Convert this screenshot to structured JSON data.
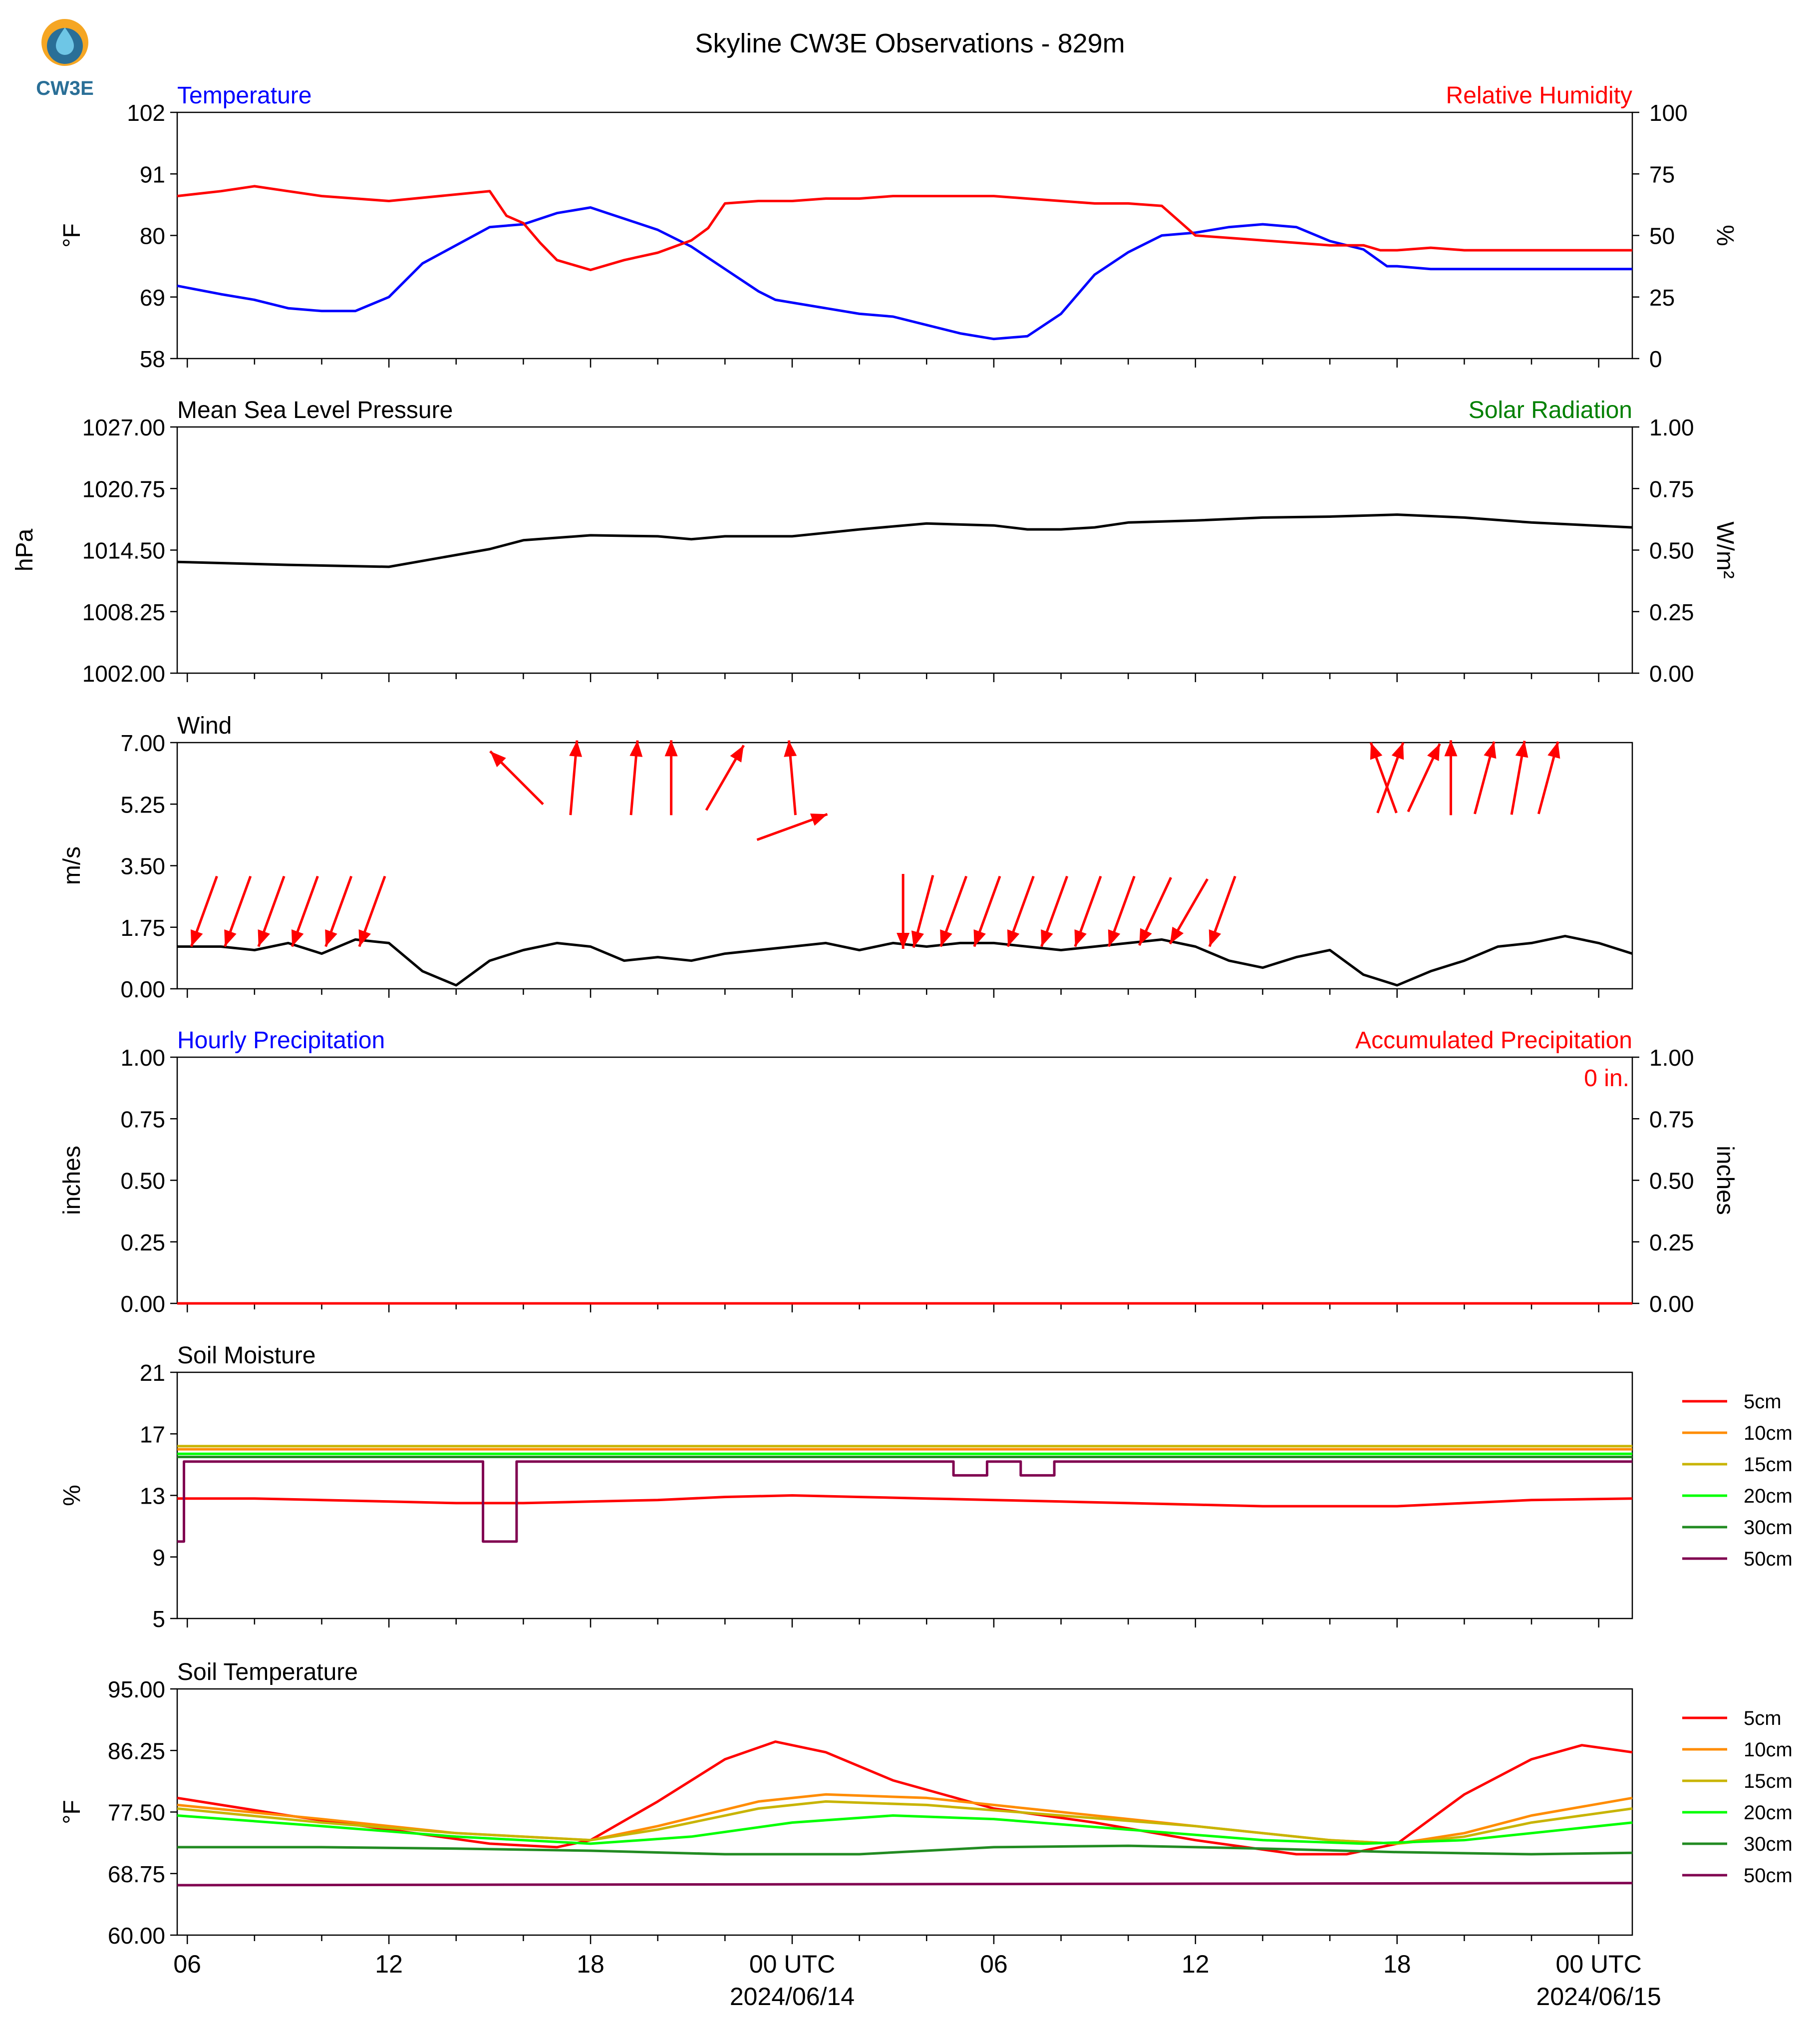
{
  "figure": {
    "title": "Skyline CW3E Observations - 829m",
    "logo_text": "CW3E"
  },
  "time_axis": {
    "tick_labels": [
      "06",
      "12",
      "18",
      "00 UTC",
      "06",
      "12",
      "18",
      "00 UTC"
    ],
    "tick_hours": [
      0,
      6,
      12,
      18,
      24,
      30,
      36,
      42
    ],
    "date_labels": [
      "2024/06/14",
      "2024/06/15"
    ],
    "date_hours": [
      18,
      42
    ],
    "start_hour": -0.3,
    "end_hour": 43.0
  },
  "colors": {
    "temperature": "#0000ff",
    "humidity": "#ff0000",
    "pressure": "#000000",
    "solar": "#008000",
    "wind_barb": "#ff0000",
    "hourly_precip": "#0000ff",
    "accum_precip": "#ff0000",
    "depth_5cm": "#ff0000",
    "depth_10cm": "#ff8c00",
    "depth_15cm": "#c8b400",
    "depth_20cm": "#00ff00",
    "depth_30cm": "#228b22",
    "depth_50cm": "#800050"
  },
  "chart_data": [
    {
      "type": "line",
      "title_left": "Temperature",
      "title_right": "Relative Humidity",
      "ylabel": "°F",
      "ylabel_right": "%",
      "ylim": [
        58,
        102
      ],
      "yticks": [
        "102",
        "91",
        "80",
        "69",
        "58"
      ],
      "ylim_right": [
        0,
        100
      ],
      "yticks_right": [
        "100",
        "75",
        "50",
        "25",
        "0"
      ],
      "series": [
        {
          "name": "Temperature",
          "axis": "left",
          "x": [
            -0.3,
            1,
            2,
            3,
            4,
            5,
            6,
            7,
            9,
            10,
            11,
            12,
            12.5,
            13,
            14,
            15,
            16,
            17,
            17.5,
            18,
            19,
            20,
            21,
            22,
            23,
            24,
            25,
            26,
            27,
            28,
            29,
            30,
            31,
            32,
            33,
            34,
            35,
            35.7,
            36,
            37,
            38,
            39,
            40,
            41,
            42,
            43
          ],
          "y": [
            71,
            69.5,
            68.5,
            67,
            66.5,
            66.5,
            69,
            75,
            81.5,
            82,
            84,
            85,
            84,
            83,
            81,
            78,
            74,
            70,
            68.5,
            68,
            67,
            66,
            65.5,
            64,
            62.5,
            61.5,
            62,
            66,
            73,
            77,
            80,
            80.5,
            81.5,
            82,
            81.5,
            79,
            77.5,
            74.5,
            74.5,
            74,
            74,
            74,
            74,
            74,
            74,
            74
          ]
        },
        {
          "name": "Relative Humidity",
          "axis": "right",
          "x": [
            -0.3,
            1,
            2,
            3,
            4,
            6,
            9,
            9.5,
            10,
            10.5,
            11,
            11.5,
            12,
            13,
            14,
            15,
            15.5,
            16,
            17,
            18,
            19,
            20,
            21,
            22,
            23,
            24,
            25,
            26,
            27,
            28,
            29,
            30,
            31,
            32,
            33,
            34,
            35,
            35.5,
            36,
            37,
            38,
            39,
            40,
            41,
            42,
            43
          ],
          "y": [
            66,
            68,
            70,
            68,
            66,
            64,
            68,
            58,
            55,
            47,
            40,
            38,
            36,
            40,
            43,
            48,
            53,
            63,
            64,
            64,
            65,
            65,
            66,
            66,
            66,
            66,
            65,
            64,
            63,
            63,
            62,
            50,
            49,
            48,
            47,
            46,
            46,
            44,
            44,
            45,
            44,
            44,
            44,
            44,
            44,
            44
          ]
        }
      ]
    },
    {
      "type": "line",
      "title_left": "Mean Sea Level Pressure",
      "title_right": "Solar Radiation",
      "ylabel": "hPa",
      "ylabel_right": "W/m²",
      "ylim": [
        1002,
        1027
      ],
      "yticks": [
        "1027.00",
        "1020.75",
        "1014.50",
        "1008.25",
        "1002.00"
      ],
      "ylim_right": [
        0,
        1
      ],
      "yticks_right": [
        "1.00",
        "0.75",
        "0.50",
        "0.25",
        "0.00"
      ],
      "series": [
        {
          "name": "Mean Sea Level Pressure",
          "axis": "left",
          "x": [
            -0.3,
            3,
            6,
            9,
            10,
            12,
            14,
            15,
            16,
            18,
            20,
            22,
            24,
            25,
            26,
            27,
            28,
            30,
            32,
            34,
            36,
            38,
            40,
            43
          ],
          "y": [
            1013.3,
            1013.0,
            1012.8,
            1014.6,
            1015.5,
            1016.0,
            1015.9,
            1015.6,
            1015.9,
            1015.9,
            1016.6,
            1017.2,
            1017.0,
            1016.6,
            1016.6,
            1016.8,
            1017.3,
            1017.5,
            1017.8,
            1017.9,
            1018.1,
            1017.8,
            1017.3,
            1016.8
          ]
        }
      ]
    },
    {
      "type": "line",
      "title_left": "Wind",
      "ylabel": "m/s",
      "ylim": [
        0,
        7
      ],
      "yticks": [
        "7.00",
        "5.25",
        "3.50",
        "1.75",
        "0.00"
      ],
      "series": [
        {
          "name": "Wind speed",
          "x": [
            -0.3,
            1,
            2,
            3,
            4,
            5,
            6,
            7,
            8,
            9,
            10,
            11,
            12,
            13,
            14,
            15,
            16,
            17,
            18,
            19,
            20,
            21,
            22,
            23,
            24,
            25,
            26,
            27,
            28,
            29,
            30,
            31,
            32,
            33,
            34,
            35,
            36,
            37,
            38,
            39,
            40,
            41,
            42,
            43
          ],
          "y": [
            1.2,
            1.2,
            1.1,
            1.3,
            1.0,
            1.4,
            1.3,
            0.5,
            0.1,
            0.8,
            1.1,
            1.3,
            1.2,
            0.8,
            0.9,
            0.8,
            1.0,
            1.1,
            1.2,
            1.3,
            1.1,
            1.3,
            1.2,
            1.3,
            1.3,
            1.2,
            1.1,
            1.2,
            1.3,
            1.4,
            1.2,
            0.8,
            0.6,
            0.9,
            1.1,
            0.4,
            0.1,
            0.5,
            0.8,
            1.2,
            1.3,
            1.5,
            1.3,
            1.0
          ]
        }
      ],
      "wind_arrows": [
        {
          "hour": 0.5,
          "speed": 2.2,
          "dir_deg": 20
        },
        {
          "hour": 1.5,
          "speed": 2.2,
          "dir_deg": 20
        },
        {
          "hour": 2.5,
          "speed": 2.2,
          "dir_deg": 20
        },
        {
          "hour": 3.5,
          "speed": 2.2,
          "dir_deg": 20
        },
        {
          "hour": 4.5,
          "speed": 2.2,
          "dir_deg": 20
        },
        {
          "hour": 5.5,
          "speed": 2.2,
          "dir_deg": 20
        },
        {
          "hour": 9.8,
          "speed": 6.0,
          "dir_deg": 135
        },
        {
          "hour": 11.5,
          "speed": 6.0,
          "dir_deg": 185
        },
        {
          "hour": 13.3,
          "speed": 6.0,
          "dir_deg": 185
        },
        {
          "hour": 14.4,
          "speed": 6.0,
          "dir_deg": 180
        },
        {
          "hour": 16.0,
          "speed": 6.0,
          "dir_deg": 210
        },
        {
          "hour": 18.0,
          "speed": 6.0,
          "dir_deg": 175
        },
        {
          "hour": 18.0,
          "speed": 4.6,
          "dir_deg": 250
        },
        {
          "hour": 21.3,
          "speed": 2.2,
          "dir_deg": 0
        },
        {
          "hour": 21.9,
          "speed": 2.2,
          "dir_deg": 15
        },
        {
          "hour": 22.8,
          "speed": 2.2,
          "dir_deg": 20
        },
        {
          "hour": 23.8,
          "speed": 2.2,
          "dir_deg": 20
        },
        {
          "hour": 24.8,
          "speed": 2.2,
          "dir_deg": 20
        },
        {
          "hour": 25.8,
          "speed": 2.2,
          "dir_deg": 20
        },
        {
          "hour": 26.8,
          "speed": 2.2,
          "dir_deg": 20
        },
        {
          "hour": 27.8,
          "speed": 2.2,
          "dir_deg": 20
        },
        {
          "hour": 28.8,
          "speed": 2.2,
          "dir_deg": 25
        },
        {
          "hour": 29.8,
          "speed": 2.2,
          "dir_deg": 30
        },
        {
          "hour": 30.8,
          "speed": 2.2,
          "dir_deg": 20
        },
        {
          "hour": 35.6,
          "speed": 6.0,
          "dir_deg": 160
        },
        {
          "hour": 35.8,
          "speed": 6.0,
          "dir_deg": 200
        },
        {
          "hour": 36.8,
          "speed": 6.0,
          "dir_deg": 205
        },
        {
          "hour": 37.6,
          "speed": 6.0,
          "dir_deg": 180
        },
        {
          "hour": 38.6,
          "speed": 6.0,
          "dir_deg": 195
        },
        {
          "hour": 39.6,
          "speed": 6.0,
          "dir_deg": 190
        },
        {
          "hour": 40.5,
          "speed": 6.0,
          "dir_deg": 195
        }
      ]
    },
    {
      "type": "line",
      "title_left": "Hourly Precipitation",
      "title_right": "Accumulated Precipitation",
      "annotation": "0 in.",
      "ylabel": "inches",
      "ylabel_right": "inches",
      "ylim": [
        0,
        1
      ],
      "yticks": [
        "1.00",
        "0.75",
        "0.50",
        "0.25",
        "0.00"
      ],
      "ylim_right": [
        0,
        1
      ],
      "yticks_right": [
        "1.00",
        "0.75",
        "0.50",
        "0.25",
        "0.00"
      ],
      "series": [
        {
          "name": "Hourly Precipitation",
          "x": [
            -0.3,
            43
          ],
          "y": [
            0,
            0
          ]
        },
        {
          "name": "Accumulated Precipitation",
          "axis": "right",
          "x": [
            -0.3,
            43
          ],
          "y": [
            0,
            0
          ]
        }
      ]
    },
    {
      "type": "line",
      "title_left": "Soil Moisture",
      "ylabel": "%",
      "ylim": [
        5,
        21
      ],
      "yticks": [
        "21",
        "17",
        "13",
        "9",
        "5"
      ],
      "legend": [
        "5cm",
        "10cm",
        "15cm",
        "20cm",
        "30cm",
        "50cm"
      ],
      "series": [
        {
          "name": "5cm",
          "x": [
            -0.3,
            2,
            4,
            6,
            8,
            10,
            12,
            14,
            16,
            18,
            20,
            22,
            24,
            26,
            28,
            30,
            32,
            34,
            36,
            38,
            40,
            43
          ],
          "y": [
            12.8,
            12.8,
            12.7,
            12.6,
            12.5,
            12.5,
            12.6,
            12.7,
            12.9,
            13.0,
            12.9,
            12.8,
            12.7,
            12.6,
            12.5,
            12.4,
            12.3,
            12.3,
            12.3,
            12.5,
            12.7,
            12.8
          ]
        },
        {
          "name": "10cm",
          "x": [
            -0.3,
            43
          ],
          "y": [
            16.0,
            16.0
          ]
        },
        {
          "name": "15cm",
          "x": [
            -0.3,
            43
          ],
          "y": [
            16.2,
            16.2
          ]
        },
        {
          "name": "20cm",
          "x": [
            -0.3,
            43
          ],
          "y": [
            15.7,
            15.7
          ]
        },
        {
          "name": "30cm",
          "x": [
            -0.3,
            43
          ],
          "y": [
            15.5,
            15.5
          ]
        },
        {
          "name": "50cm",
          "x": [
            -0.3,
            -0.1,
            -0.1,
            8.8,
            8.8,
            9.8,
            9.8,
            22.8,
            22.8,
            23.8,
            23.8,
            24.8,
            24.8,
            25.8,
            25.8,
            43
          ],
          "y": [
            10.0,
            10.0,
            15.2,
            15.2,
            10.0,
            10.0,
            15.2,
            15.2,
            14.3,
            14.3,
            15.2,
            15.2,
            14.3,
            14.3,
            15.2,
            15.2
          ]
        }
      ]
    },
    {
      "type": "line",
      "title_left": "Soil Temperature",
      "ylabel": "°F",
      "ylim": [
        60,
        95
      ],
      "yticks": [
        "95.00",
        "86.25",
        "77.50",
        "68.75",
        "60.00"
      ],
      "legend": [
        "5cm",
        "10cm",
        "15cm",
        "20cm",
        "30cm",
        "50cm"
      ],
      "series": [
        {
          "name": "5cm",
          "x": [
            -0.3,
            3,
            6,
            9,
            11,
            12,
            14,
            16,
            17.5,
            19,
            21,
            24,
            27,
            30,
            33,
            34.5,
            36,
            38,
            40,
            41.5,
            43
          ],
          "y": [
            79.5,
            77,
            75,
            73,
            72.5,
            73.5,
            79,
            85,
            87.5,
            86,
            82,
            78,
            76,
            73.5,
            71.5,
            71.5,
            73,
            80,
            85,
            87,
            86
          ]
        },
        {
          "name": "10cm",
          "x": [
            -0.3,
            4,
            8,
            12,
            14,
            17,
            19,
            22,
            26,
            30,
            34,
            36,
            38,
            40,
            43
          ],
          "y": [
            78.5,
            76.5,
            74.5,
            73.5,
            75.5,
            79,
            80,
            79.5,
            77.5,
            75.5,
            73.5,
            73,
            74.5,
            77,
            79.5
          ]
        },
        {
          "name": "15cm",
          "x": [
            -0.3,
            4,
            8,
            12,
            14,
            17,
            19,
            22,
            26,
            30,
            34,
            36,
            38,
            40,
            43
          ],
          "y": [
            78,
            76,
            74.5,
            73.5,
            75,
            78,
            79,
            78.5,
            77,
            75.5,
            73.5,
            73,
            74,
            76,
            78
          ]
        },
        {
          "name": "20cm",
          "x": [
            -0.3,
            4,
            8,
            12,
            15,
            18,
            21,
            24,
            28,
            32,
            35,
            38,
            41,
            43
          ],
          "y": [
            77,
            75.5,
            74,
            73,
            74,
            76,
            77,
            76.5,
            75,
            73.5,
            73,
            73.5,
            75,
            76
          ]
        },
        {
          "name": "30cm",
          "x": [
            -0.3,
            4,
            8,
            12,
            16,
            20,
            24,
            28,
            32,
            36,
            40,
            43
          ],
          "y": [
            72.5,
            72.5,
            72.3,
            72,
            71.5,
            71.5,
            72.5,
            72.7,
            72.3,
            71.8,
            71.5,
            71.7
          ]
        },
        {
          "name": "50cm",
          "x": [
            -0.3,
            43
          ],
          "y": [
            67.1,
            67.4
          ]
        }
      ]
    }
  ]
}
